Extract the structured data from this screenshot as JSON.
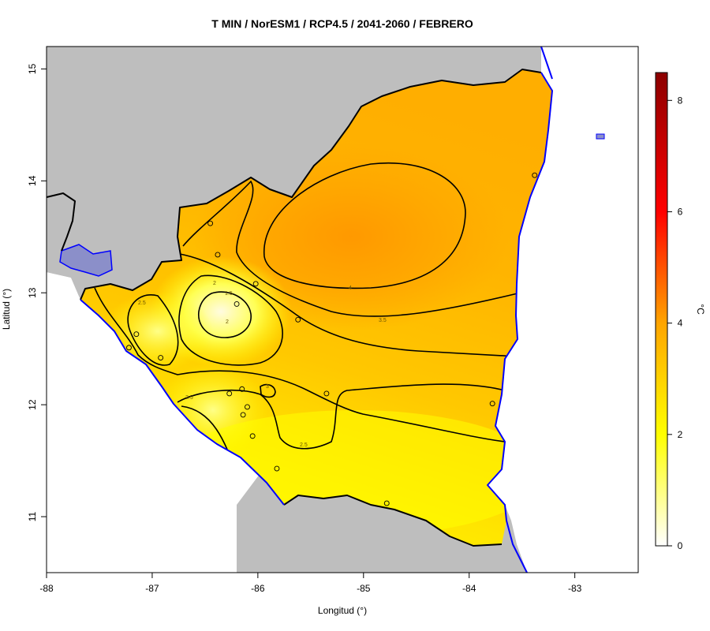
{
  "title": "T MIN / NorESM1 / RCP4.5 / 2041-2060 / FEBRERO",
  "x_axis": {
    "label": "Longitud (°)",
    "ticks": [
      "-88",
      "-87",
      "-86",
      "-85",
      "-84",
      "-83"
    ]
  },
  "y_axis": {
    "label": "Latitud (°)",
    "ticks": [
      "11",
      "12",
      "13",
      "14",
      "15"
    ]
  },
  "colorbar": {
    "unit": "°C",
    "ticks": [
      "0",
      "2",
      "4",
      "6",
      "8"
    ],
    "range": [
      0,
      8.5
    ],
    "colors": [
      "#ffffff",
      "#ffff00",
      "#ffa500",
      "#ff0000",
      "#8b0000"
    ]
  },
  "contour_labels": [
    "1.5",
    "2",
    "2.5",
    "2.5",
    "3",
    "3.5",
    "4",
    "2",
    "2.5"
  ],
  "colors": {
    "land_background": "#bebebe",
    "lake_water": "#8b8fc9",
    "coastline": "#0000ff",
    "border": "#000000"
  },
  "stations": [
    {
      "lon": -86.45,
      "lat": 13.62
    },
    {
      "lon": -86.38,
      "lat": 13.34
    },
    {
      "lon": -86.02,
      "lat": 13.08
    },
    {
      "lon": -86.2,
      "lat": 12.9
    },
    {
      "lon": -85.62,
      "lat": 12.76
    },
    {
      "lon": -87.15,
      "lat": 12.63
    },
    {
      "lon": -86.92,
      "lat": 12.42
    },
    {
      "lon": -87.22,
      "lat": 12.51
    },
    {
      "lon": -86.27,
      "lat": 12.1
    },
    {
      "lon": -86.15,
      "lat": 12.14
    },
    {
      "lon": -86.1,
      "lat": 11.98
    },
    {
      "lon": -86.14,
      "lat": 11.91
    },
    {
      "lon": -86.05,
      "lat": 11.72
    },
    {
      "lon": -85.82,
      "lat": 11.43
    },
    {
      "lon": -85.35,
      "lat": 12.1
    },
    {
      "lon": -84.78,
      "lat": 11.12
    },
    {
      "lon": -83.78,
      "lat": 12.01
    },
    {
      "lon": -83.38,
      "lat": 14.05
    }
  ]
}
